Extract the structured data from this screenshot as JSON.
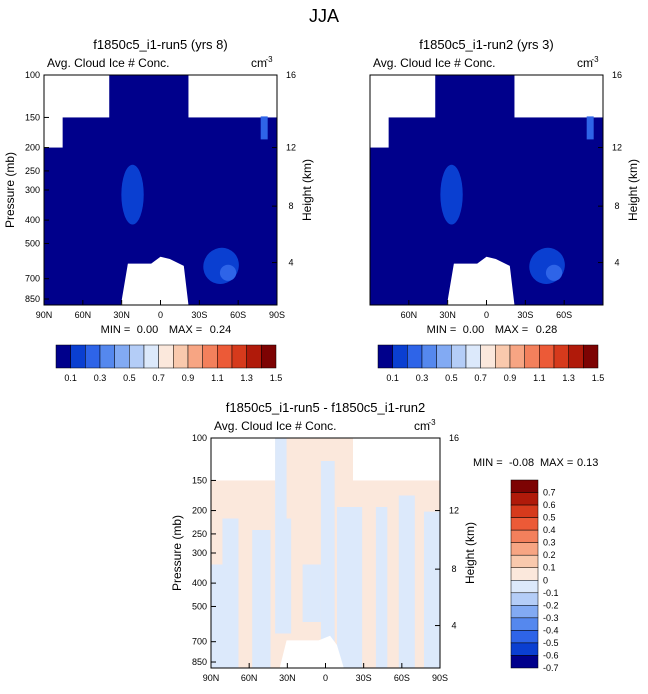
{
  "figure": {
    "title": "JJA"
  },
  "chart_data": [
    {
      "type": "heatmap",
      "title": "f1850c5_i1-run5 (yrs 8)",
      "subtitle": "Avg. Cloud Ice # Conc.",
      "units": "cm",
      "units_exponent": "-3",
      "ylabel_left": "Pressure (mb)",
      "ylabel_right": "Height (km)",
      "x_ticks": [
        "90N",
        "60N",
        "30N",
        "0",
        "30S",
        "60S",
        "90S"
      ],
      "y_ticks_pressure": [
        "100",
        "150",
        "200",
        "250",
        "300",
        "400",
        "500",
        "700",
        "850"
      ],
      "y_ticks_height": [
        "16",
        "12",
        "8",
        "4"
      ],
      "stats": {
        "min_label": "MIN =",
        "min": "0.00",
        "max_label": "MAX =",
        "max": "0.24"
      },
      "colorbar_labels": [
        "0.1",
        "0.3",
        "0.5",
        "0.7",
        "0.9",
        "1.1",
        "1.3",
        "1.5"
      ]
    },
    {
      "type": "heatmap",
      "title": "f1850c5_i1-run2 (yrs 3)",
      "subtitle": "Avg. Cloud Ice # Conc.",
      "units": "cm",
      "units_exponent": "-3",
      "ylabel_left": "",
      "ylabel_right": "Height (km)",
      "x_ticks": [
        "60N",
        "30N",
        "0",
        "30S",
        "60S"
      ],
      "y_ticks_pressure": [],
      "y_ticks_height": [
        "16",
        "12",
        "8",
        "4"
      ],
      "stats": {
        "min_label": "MIN =",
        "min": "0.00",
        "max_label": "MAX =",
        "max": "0.28"
      },
      "colorbar_labels": [
        "0.1",
        "0.3",
        "0.5",
        "0.7",
        "0.9",
        "1.1",
        "1.3",
        "1.5"
      ]
    },
    {
      "type": "heatmap",
      "title": "f1850c5_i1-run5 - f1850c5_i1-run2",
      "subtitle": "Avg. Cloud Ice # Conc.",
      "units": "cm",
      "units_exponent": "-3",
      "ylabel_left": "Pressure (mb)",
      "ylabel_right": "Height (km)",
      "x_ticks": [
        "90N",
        "60N",
        "30N",
        "0",
        "30S",
        "60S",
        "90S"
      ],
      "y_ticks_pressure": [
        "100",
        "150",
        "200",
        "250",
        "300",
        "400",
        "500",
        "700",
        "850"
      ],
      "y_ticks_height": [
        "16",
        "12",
        "8",
        "4"
      ],
      "stats": {
        "min_label": "MIN =",
        "min": "-0.08",
        "max_label": "MAX =",
        "max": "0.13"
      },
      "colorbar_labels": [
        "0.7",
        "0.6",
        "0.5",
        "0.4",
        "0.3",
        "0.2",
        "0.1",
        "0",
        "-0.1",
        "-0.2",
        "-0.3",
        "-0.4",
        "-0.5",
        "-0.6",
        "-0.7"
      ]
    }
  ],
  "colors": {
    "absolute_scale": [
      "#00008b",
      "#0a3fd1",
      "#2e64e8",
      "#5588ee",
      "#82aaf3",
      "#b4cdf7",
      "#dce9fb",
      "#fbe8dc",
      "#f9c9ad",
      "#f7a583",
      "#f3805c",
      "#ec5a37",
      "#d63a1c",
      "#b01a0a",
      "#7d0303"
    ],
    "diff_scale": [
      "#7d0303",
      "#b01a0a",
      "#d63a1c",
      "#ec5a37",
      "#f3805c",
      "#f7a583",
      "#f9c9ad",
      "#fbe8dc",
      "#dce9fb",
      "#b4cdf7",
      "#82aaf3",
      "#5588ee",
      "#2e64e8",
      "#0a3fd1",
      "#00008b"
    ]
  }
}
